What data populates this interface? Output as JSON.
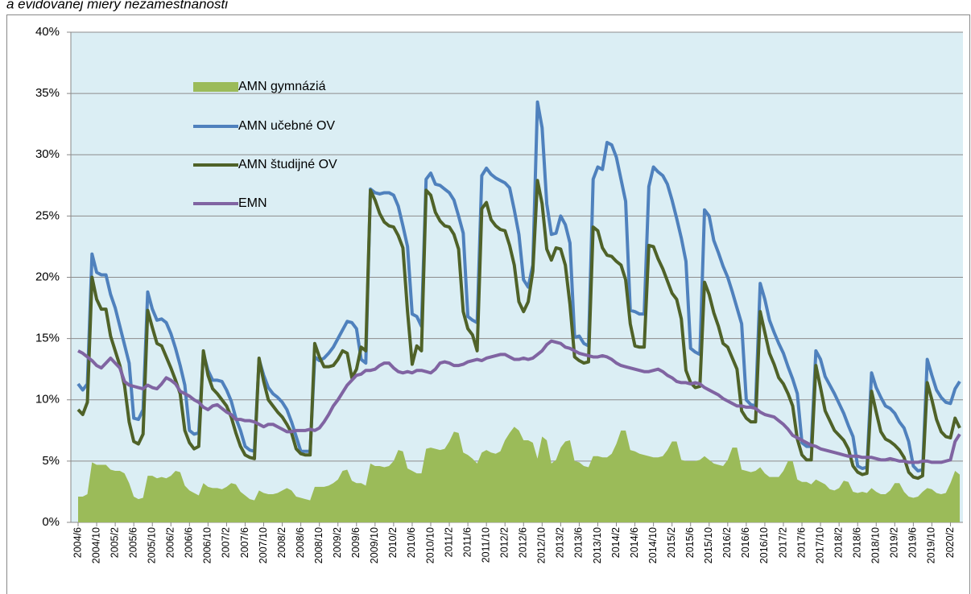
{
  "chart_data": {
    "type": "line",
    "title": "a evidovanej miery nezamestnanosti",
    "categories": [
      "2004/6",
      null,
      null,
      null,
      "2004/10",
      null,
      null,
      null,
      "2005/2",
      null,
      null,
      null,
      "2005/6",
      null,
      null,
      null,
      "2005/10",
      null,
      null,
      null,
      "2006/2",
      null,
      null,
      null,
      "2006/6",
      null,
      null,
      null,
      "2006/10",
      null,
      null,
      null,
      "2007/2",
      null,
      null,
      null,
      "2007/6",
      null,
      null,
      null,
      "2007/10",
      null,
      null,
      null,
      "2008/2",
      null,
      null,
      null,
      "2008/6",
      null,
      null,
      null,
      "2008/10",
      null,
      null,
      null,
      "2009/2",
      null,
      null,
      null,
      "2009/6",
      null,
      null,
      null,
      "2009/10",
      null,
      null,
      null,
      "2010/2",
      null,
      null,
      null,
      "2010/6",
      null,
      null,
      null,
      "2010/10",
      null,
      null,
      null,
      "2011/2",
      null,
      null,
      null,
      "2011/6",
      null,
      null,
      null,
      "2011/10",
      null,
      null,
      null,
      "2012/2",
      null,
      null,
      null,
      "2012/6",
      null,
      null,
      null,
      "2012/10",
      null,
      null,
      null,
      "2013/2",
      null,
      null,
      null,
      "2013/6",
      null,
      null,
      null,
      "2013/10",
      null,
      null,
      null,
      "2014/2",
      null,
      null,
      null,
      "2014/6",
      null,
      null,
      null,
      "2014/10",
      null,
      null,
      null,
      "2015/2",
      null,
      null,
      null,
      "2015/6",
      null,
      null,
      null,
      "2015/10",
      null,
      null,
      null,
      "2016/2",
      null,
      null,
      null,
      "2016/6",
      null,
      null,
      null,
      "2016/10",
      null,
      null,
      null,
      "2017/2",
      null,
      null,
      null,
      "2017/6",
      null,
      null,
      null,
      "2017/10",
      null,
      null,
      null,
      "2018/2",
      null,
      null,
      null,
      "2018/6",
      null,
      null,
      null,
      "2018/10",
      null,
      null,
      null,
      "2019/2",
      null,
      null,
      null,
      "2019/6",
      null,
      null,
      null,
      "2019/10",
      null,
      null,
      null,
      "2020/2",
      null,
      null
    ],
    "series": [
      {
        "name": "AMN gymnáziá",
        "type": "area",
        "color": "#9bbb59",
        "values": [
          2.1,
          2.1,
          2.3,
          4.9,
          4.7,
          4.7,
          4.7,
          4.3,
          4.2,
          4.2,
          4.0,
          3.2,
          2.1,
          1.9,
          2.0,
          3.8,
          3.8,
          3.6,
          3.7,
          3.6,
          3.8,
          4.2,
          4.1,
          3.0,
          2.6,
          2.4,
          2.2,
          3.2,
          2.9,
          2.8,
          2.8,
          2.7,
          2.9,
          3.2,
          3.1,
          2.5,
          2.2,
          1.9,
          1.8,
          2.6,
          2.4,
          2.3,
          2.3,
          2.4,
          2.6,
          2.8,
          2.6,
          2.1,
          2.0,
          1.9,
          1.8,
          2.9,
          2.9,
          2.9,
          3.0,
          3.2,
          3.5,
          4.2,
          4.3,
          3.4,
          3.2,
          3.2,
          3.0,
          4.8,
          4.6,
          4.6,
          4.5,
          4.6,
          5.0,
          5.9,
          5.8,
          4.4,
          4.2,
          4.0,
          4.0,
          6.0,
          6.1,
          6.0,
          5.9,
          6.0,
          6.6,
          7.4,
          7.3,
          5.7,
          5.5,
          5.2,
          4.8,
          5.7,
          5.9,
          5.7,
          5.6,
          5.8,
          6.7,
          7.3,
          7.8,
          7.5,
          6.7,
          6.7,
          6.5,
          5.2,
          7.0,
          6.7,
          4.8,
          5.1,
          6.1,
          6.6,
          6.7,
          5.0,
          4.9,
          4.6,
          4.5,
          5.4,
          5.4,
          5.3,
          5.3,
          5.6,
          6.4,
          7.5,
          7.5,
          5.9,
          5.8,
          5.6,
          5.5,
          5.4,
          5.3,
          5.3,
          5.4,
          5.9,
          6.6,
          6.6,
          5.1,
          5.0,
          5.0,
          5.0,
          5.1,
          5.4,
          5.1,
          4.8,
          4.7,
          4.6,
          5.1,
          6.1,
          6.1,
          4.3,
          4.2,
          4.1,
          4.2,
          4.5,
          4.0,
          3.7,
          3.7,
          3.7,
          4.2,
          5.0,
          5.0,
          3.5,
          3.3,
          3.3,
          3.1,
          3.5,
          3.3,
          3.1,
          2.7,
          2.6,
          2.8,
          3.4,
          3.3,
          2.5,
          2.4,
          2.5,
          2.4,
          2.8,
          2.5,
          2.3,
          2.3,
          2.6,
          3.2,
          3.2,
          2.5,
          2.1,
          2.0,
          2.1,
          2.5,
          2.8,
          2.7,
          2.4,
          2.3,
          2.4,
          3.2,
          4.2,
          3.9
        ]
      },
      {
        "name": "AMN učebné OV",
        "type": "line",
        "color": "#4f81bd",
        "values": [
          11.3,
          10.8,
          11.3,
          21.9,
          20.4,
          20.2,
          20.2,
          18.6,
          17.5,
          16.0,
          14.5,
          13.0,
          8.5,
          8.4,
          9.2,
          18.8,
          17.4,
          16.5,
          16.6,
          16.3,
          15.4,
          14.2,
          12.8,
          11.2,
          7.5,
          7.2,
          7.3,
          13.8,
          12.4,
          11.6,
          11.6,
          11.5,
          10.8,
          9.9,
          8.5,
          7.5,
          6.2,
          5.9,
          5.8,
          13.3,
          12.0,
          11.0,
          10.5,
          10.2,
          9.8,
          9.2,
          8.2,
          7.0,
          5.8,
          5.8,
          5.8,
          13.5,
          13.2,
          13.4,
          13.8,
          14.3,
          15.0,
          15.7,
          16.4,
          16.3,
          15.8,
          13.3,
          13.0,
          27.2,
          26.9,
          26.8,
          26.9,
          26.9,
          26.7,
          25.8,
          24.2,
          22.5,
          17.0,
          16.8,
          16.0,
          28.0,
          28.5,
          27.6,
          27.5,
          27.2,
          26.9,
          26.3,
          25.0,
          23.6,
          16.8,
          16.5,
          16.3,
          28.3,
          28.9,
          28.4,
          28.1,
          27.9,
          27.7,
          27.3,
          25.5,
          23.5,
          19.8,
          19.2,
          21.0,
          34.3,
          32.2,
          26.0,
          23.5,
          23.6,
          25.0,
          24.3,
          22.8,
          15.1,
          15.2,
          14.6,
          14.4,
          28.0,
          29.0,
          28.8,
          31.0,
          30.8,
          29.8,
          28.0,
          26.2,
          17.3,
          17.2,
          17.0,
          17.0,
          27.4,
          29.0,
          28.6,
          28.3,
          27.6,
          26.3,
          24.8,
          23.2,
          21.3,
          14.2,
          13.9,
          13.7,
          25.5,
          25.0,
          23.0,
          22.0,
          20.9,
          20.0,
          18.8,
          17.5,
          16.2,
          10.0,
          9.6,
          9.5,
          19.5,
          18.2,
          16.5,
          15.5,
          14.6,
          13.8,
          12.7,
          11.7,
          10.5,
          6.5,
          6.2,
          6.2,
          14.0,
          13.3,
          11.9,
          11.2,
          10.5,
          9.7,
          8.9,
          7.9,
          7.0,
          4.6,
          4.4,
          4.5,
          12.2,
          11.0,
          10.2,
          9.5,
          9.3,
          8.9,
          8.2,
          7.7,
          6.6,
          4.6,
          4.2,
          4.3,
          13.3,
          12.0,
          10.8,
          10.2,
          9.8,
          9.7,
          10.9,
          11.5
        ]
      },
      {
        "name": "AMN študijné OV",
        "type": "line",
        "color": "#4f6228",
        "values": [
          9.2,
          8.8,
          9.8,
          20.0,
          18.2,
          17.4,
          17.4,
          15.2,
          14.0,
          12.8,
          11.2,
          8.2,
          6.6,
          6.4,
          7.2,
          17.3,
          15.9,
          14.6,
          14.4,
          13.5,
          12.6,
          11.6,
          10.5,
          7.5,
          6.5,
          6.0,
          6.2,
          14.0,
          12.0,
          10.9,
          10.5,
          10.0,
          9.5,
          8.6,
          7.3,
          6.2,
          5.5,
          5.3,
          5.2,
          13.4,
          11.5,
          10.0,
          9.5,
          9.0,
          8.6,
          8.0,
          7.3,
          6.0,
          5.6,
          5.5,
          5.5,
          14.6,
          13.5,
          12.7,
          12.7,
          12.8,
          13.3,
          14.0,
          13.8,
          11.8,
          12.5,
          14.3,
          14.0,
          27.1,
          26.3,
          25.2,
          24.5,
          24.2,
          24.1,
          23.4,
          22.4,
          17.2,
          12.9,
          14.4,
          14.0,
          27.1,
          26.7,
          25.3,
          24.6,
          24.2,
          24.1,
          23.5,
          22.3,
          17.2,
          15.8,
          15.3,
          14.0,
          25.6,
          26.1,
          24.7,
          24.2,
          23.9,
          23.8,
          22.6,
          21.0,
          18.0,
          17.2,
          18.0,
          20.5,
          27.9,
          26.0,
          22.3,
          21.4,
          22.4,
          22.3,
          21.0,
          17.8,
          13.5,
          13.2,
          13.0,
          13.1,
          24.1,
          23.8,
          22.4,
          21.8,
          21.7,
          21.3,
          21.0,
          19.8,
          16.2,
          14.4,
          14.3,
          14.3,
          22.6,
          22.5,
          21.5,
          20.7,
          19.7,
          18.7,
          18.2,
          16.6,
          12.4,
          11.4,
          11.0,
          11.1,
          19.6,
          18.6,
          17.1,
          16.0,
          14.6,
          14.3,
          13.4,
          12.5,
          9.1,
          8.5,
          8.2,
          8.2,
          17.2,
          15.5,
          13.8,
          12.9,
          11.8,
          11.3,
          10.5,
          9.5,
          6.8,
          5.5,
          5.1,
          5.1,
          12.8,
          11.0,
          9.1,
          8.3,
          7.5,
          7.1,
          6.7,
          6.0,
          4.6,
          4.1,
          3.9,
          4.0,
          10.7,
          9.0,
          7.4,
          6.8,
          6.6,
          6.3,
          5.9,
          5.3,
          4.1,
          3.7,
          3.6,
          3.8,
          11.4,
          10.0,
          8.4,
          7.4,
          7.0,
          6.9,
          8.5,
          7.7
        ]
      },
      {
        "name": "EMN",
        "type": "line",
        "color": "#8064a2",
        "values": [
          14.0,
          13.8,
          13.5,
          13.2,
          12.8,
          12.6,
          13.0,
          13.4,
          13.0,
          12.6,
          11.5,
          11.2,
          11.1,
          11.0,
          10.9,
          11.2,
          11.0,
          10.9,
          11.3,
          11.8,
          11.6,
          11.3,
          10.7,
          10.5,
          10.3,
          10.0,
          9.8,
          9.4,
          9.2,
          9.5,
          9.6,
          9.3,
          9.0,
          8.8,
          8.4,
          8.4,
          8.3,
          8.3,
          8.2,
          8.0,
          7.8,
          8.0,
          8.0,
          7.8,
          7.6,
          7.4,
          7.4,
          7.5,
          7.5,
          7.5,
          7.6,
          7.5,
          7.7,
          8.2,
          8.8,
          9.5,
          10.0,
          10.6,
          11.2,
          11.6,
          12.0,
          12.1,
          12.4,
          12.4,
          12.5,
          12.8,
          13.0,
          13.0,
          12.6,
          12.3,
          12.2,
          12.3,
          12.2,
          12.4,
          12.4,
          12.3,
          12.2,
          12.5,
          13.0,
          13.1,
          13.0,
          12.8,
          12.8,
          12.9,
          13.1,
          13.2,
          13.3,
          13.2,
          13.4,
          13.5,
          13.6,
          13.7,
          13.7,
          13.5,
          13.3,
          13.3,
          13.4,
          13.3,
          13.4,
          13.7,
          14.0,
          14.5,
          14.8,
          14.7,
          14.6,
          14.3,
          14.2,
          14.0,
          13.8,
          13.7,
          13.6,
          13.5,
          13.5,
          13.6,
          13.5,
          13.3,
          13.0,
          12.8,
          12.7,
          12.6,
          12.5,
          12.4,
          12.3,
          12.3,
          12.4,
          12.5,
          12.3,
          12.0,
          11.8,
          11.5,
          11.4,
          11.4,
          11.3,
          11.4,
          11.3,
          11.0,
          10.8,
          10.6,
          10.4,
          10.1,
          9.9,
          9.7,
          9.5,
          9.5,
          9.4,
          9.4,
          9.3,
          9.0,
          8.8,
          8.7,
          8.6,
          8.3,
          8.0,
          7.6,
          7.1,
          6.9,
          6.7,
          6.5,
          6.3,
          6.2,
          6.0,
          5.9,
          5.8,
          5.7,
          5.6,
          5.5,
          5.4,
          5.4,
          5.4,
          5.3,
          5.3,
          5.3,
          5.2,
          5.1,
          5.1,
          5.2,
          5.1,
          5.0,
          5.0,
          4.9,
          4.9,
          4.9,
          5.0,
          5.0,
          4.9,
          4.9,
          4.9,
          5.0,
          5.1,
          6.6,
          7.2
        ]
      }
    ],
    "ylim": [
      0,
      40
    ],
    "yticks": [
      {
        "value": 0,
        "label": "0%"
      },
      {
        "value": 5,
        "label": "5%"
      },
      {
        "value": 10,
        "label": "10%"
      },
      {
        "value": 15,
        "label": "15%"
      },
      {
        "value": 20,
        "label": "20%"
      },
      {
        "value": 25,
        "label": "25%"
      },
      {
        "value": 30,
        "label": "30%"
      },
      {
        "value": 35,
        "label": "35%"
      },
      {
        "value": 40,
        "label": "40%"
      }
    ],
    "grid": true
  }
}
